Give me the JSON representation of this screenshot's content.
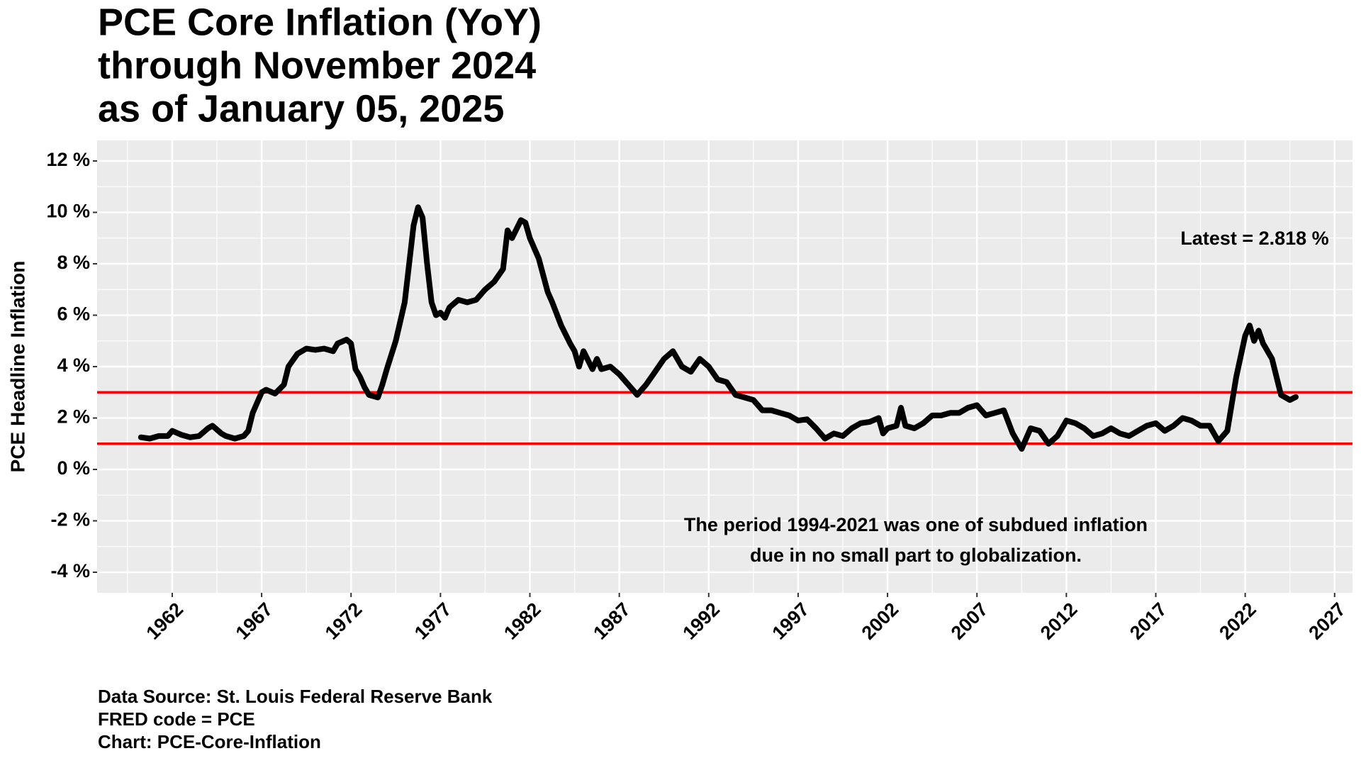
{
  "chart_data": {
    "type": "line",
    "title": [
      "PCE Core Inflation (YoY)",
      "through November 2024",
      "as of January 05, 2025"
    ],
    "ylabel": "PCE Headline Inflation",
    "xlim": [
      1957.8,
      2028.0
    ],
    "ylim": [
      -4.8,
      12.8
    ],
    "xticks": [
      1962,
      1967,
      1972,
      1977,
      1982,
      1987,
      1992,
      1997,
      2002,
      2007,
      2012,
      2017,
      2022,
      2027
    ],
    "yticks": [
      {
        "value": -4,
        "label": "-4 %"
      },
      {
        "value": -2,
        "label": "-2 %"
      },
      {
        "value": 0,
        "label": "0 %"
      },
      {
        "value": 2,
        "label": "2 %"
      },
      {
        "value": 4,
        "label": "4 %"
      },
      {
        "value": 6,
        "label": "6 %"
      },
      {
        "value": 8,
        "label": "8 %"
      },
      {
        "value": 10,
        "label": "10 %"
      },
      {
        "value": 12,
        "label": "12 %"
      }
    ],
    "grid": true,
    "hlines": [
      {
        "value": 3,
        "color": "#ff0000"
      },
      {
        "value": 1,
        "color": "#ff0000"
      }
    ],
    "annotations": [
      "Latest = 2.818 %"
    ],
    "note": [
      "The period 1994-2021 was one of subdued inflation",
      "due in no small part to globalization."
    ],
    "caption": [
      "Data Source:  St. Louis Federal Reserve Bank",
      "FRED code = PCE",
      "Chart: PCE-Core-Inflation"
    ],
    "series": [
      {
        "name": "PCE Core Inflation",
        "color": "#000000",
        "x": [
          1960.25,
          1960.75,
          1961.25,
          1961.75,
          1962.0,
          1962.5,
          1963.0,
          1963.5,
          1964.0,
          1964.25,
          1964.75,
          1965.0,
          1965.5,
          1966.0,
          1966.25,
          1966.5,
          1966.75,
          1967.0,
          1967.25,
          1967.75,
          1968.25,
          1968.5,
          1969.0,
          1969.5,
          1970.0,
          1970.5,
          1971.0,
          1971.25,
          1971.75,
          1972.0,
          1972.25,
          1972.5,
          1972.75,
          1973.0,
          1973.5,
          1973.75,
          1974.0,
          1974.5,
          1975.0,
          1975.25,
          1975.5,
          1975.75,
          1976.0,
          1976.25,
          1976.5,
          1976.75,
          1977.0,
          1977.25,
          1977.5,
          1978.0,
          1978.5,
          1979.0,
          1979.5,
          1980.0,
          1980.5,
          1980.75,
          1981.0,
          1981.5,
          1981.75,
          1982.0,
          1982.5,
          1983.0,
          1983.25,
          1983.75,
          1984.25,
          1984.5,
          1984.75,
          1985.0,
          1985.5,
          1985.75,
          1986.0,
          1986.5,
          1987.0,
          1987.5,
          1988.0,
          1988.5,
          1989.0,
          1989.5,
          1990.0,
          1990.5,
          1991.0,
          1991.5,
          1992.0,
          1992.5,
          1993.0,
          1993.5,
          1994.0,
          1994.5,
          1995.0,
          1995.5,
          1996.0,
          1996.5,
          1997.0,
          1997.5,
          1998.0,
          1998.5,
          1999.0,
          1999.5,
          2000.0,
          2000.5,
          2001.0,
          2001.5,
          2001.75,
          2002.0,
          2002.5,
          2002.75,
          2003.0,
          2003.5,
          2004.0,
          2004.5,
          2005.0,
          2005.5,
          2006.0,
          2006.5,
          2007.0,
          2007.5,
          2008.0,
          2008.5,
          2009.0,
          2009.5,
          2010.0,
          2010.5,
          2011.0,
          2011.5,
          2012.0,
          2012.5,
          2013.0,
          2013.5,
          2014.0,
          2014.5,
          2015.0,
          2015.5,
          2016.0,
          2016.5,
          2017.0,
          2017.5,
          2018.0,
          2018.5,
          2019.0,
          2019.5,
          2020.0,
          2020.5,
          2021.0,
          2021.5,
          2022.0,
          2022.25,
          2022.5,
          2022.75,
          2023.0,
          2023.5,
          2024.0,
          2024.5,
          2024.83
        ],
        "values": [
          1.25,
          1.2,
          1.3,
          1.3,
          1.5,
          1.35,
          1.25,
          1.3,
          1.6,
          1.7,
          1.4,
          1.3,
          1.2,
          1.3,
          1.5,
          2.2,
          2.6,
          3.0,
          3.1,
          2.95,
          3.3,
          4.0,
          4.5,
          4.7,
          4.65,
          4.7,
          4.6,
          4.9,
          5.05,
          4.9,
          3.9,
          3.6,
          3.2,
          2.9,
          2.8,
          3.3,
          3.9,
          5.0,
          6.5,
          8.0,
          9.5,
          10.2,
          9.8,
          8.0,
          6.5,
          6.0,
          6.1,
          5.9,
          6.3,
          6.6,
          6.5,
          6.6,
          7.0,
          7.3,
          7.8,
          9.3,
          9.0,
          9.7,
          9.6,
          9.0,
          8.2,
          6.9,
          6.5,
          5.6,
          4.9,
          4.6,
          4.0,
          4.6,
          3.9,
          4.3,
          3.9,
          4.0,
          3.7,
          3.3,
          2.9,
          3.3,
          3.8,
          4.3,
          4.6,
          4.0,
          3.8,
          4.3,
          4.0,
          3.5,
          3.4,
          2.9,
          2.8,
          2.7,
          2.3,
          2.3,
          2.2,
          2.1,
          1.9,
          1.95,
          1.6,
          1.2,
          1.4,
          1.3,
          1.6,
          1.8,
          1.85,
          2.0,
          1.4,
          1.6,
          1.7,
          2.4,
          1.7,
          1.6,
          1.8,
          2.1,
          2.1,
          2.2,
          2.2,
          2.4,
          2.5,
          2.1,
          2.2,
          2.3,
          1.4,
          0.8,
          1.6,
          1.5,
          1.0,
          1.3,
          1.9,
          1.8,
          1.6,
          1.3,
          1.4,
          1.6,
          1.4,
          1.3,
          1.5,
          1.7,
          1.8,
          1.5,
          1.7,
          2.0,
          1.9,
          1.7,
          1.7,
          1.1,
          1.5,
          3.6,
          5.2,
          5.6,
          5.0,
          5.4,
          4.9,
          4.3,
          2.9,
          2.7,
          2.818
        ]
      }
    ]
  }
}
